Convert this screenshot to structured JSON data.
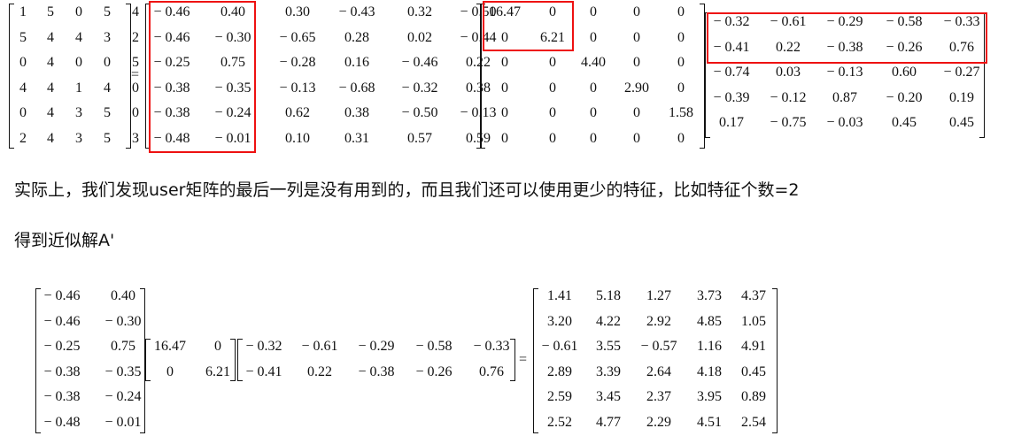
{
  "top_equation": {
    "A": [
      [
        "1",
        "5",
        "0",
        "5",
        "4"
      ],
      [
        "5",
        "4",
        "4",
        "3",
        "2"
      ],
      [
        "0",
        "4",
        "0",
        "0",
        "5"
      ],
      [
        "4",
        "4",
        "1",
        "4",
        "0"
      ],
      [
        "0",
        "4",
        "3",
        "5",
        "0"
      ],
      [
        "2",
        "4",
        "3",
        "5",
        "3"
      ]
    ],
    "eq1": "=",
    "U": [
      [
        "− 0.46",
        "0.40",
        "0.30",
        "− 0.43",
        "0.32",
        "− 0.50"
      ],
      [
        "− 0.46",
        "− 0.30",
        "− 0.65",
        "0.28",
        "0.02",
        "− 0.44"
      ],
      [
        "− 0.25",
        "0.75",
        "− 0.28",
        "0.16",
        "− 0.46",
        "0.22"
      ],
      [
        "− 0.38",
        "− 0.35",
        "− 0.13",
        "− 0.68",
        "− 0.32",
        "0.38"
      ],
      [
        "− 0.38",
        "− 0.24",
        "0.62",
        "0.38",
        "− 0.50",
        "− 0.13"
      ],
      [
        "− 0.48",
        "− 0.01",
        "0.10",
        "0.31",
        "0.57",
        "0.59"
      ]
    ],
    "S": [
      [
        "16.47",
        "0",
        "0",
        "0",
        "0"
      ],
      [
        "0",
        "6.21",
        "0",
        "0",
        "0"
      ],
      [
        "0",
        "0",
        "4.40",
        "0",
        "0"
      ],
      [
        "0",
        "0",
        "0",
        "2.90",
        "0"
      ],
      [
        "0",
        "0",
        "0",
        "0",
        "1.58"
      ],
      [
        "0",
        "0",
        "0",
        "0",
        "0"
      ]
    ],
    "Vt": [
      [
        "− 0.32",
        "− 0.61",
        "− 0.29",
        "− 0.58",
        "− 0.33"
      ],
      [
        "− 0.41",
        "0.22",
        "− 0.38",
        "− 0.26",
        "0.76"
      ],
      [
        "− 0.74",
        "0.03",
        "− 0.13",
        "0.60",
        "− 0.27"
      ],
      [
        "− 0.39",
        "− 0.12",
        "0.87",
        "− 0.20",
        "0.19"
      ],
      [
        "0.17",
        "− 0.75",
        "− 0.03",
        "0.45",
        "0.45"
      ]
    ]
  },
  "text": {
    "line1": "实际上，我们发现user矩阵的最后一列是没有用到的，而且我们还可以使用更少的特征，比如特征个数=2",
    "line2": "得到近似解A'"
  },
  "bottom_equation": {
    "U2": [
      [
        "− 0.46",
        "0.40"
      ],
      [
        "− 0.46",
        "− 0.30"
      ],
      [
        "− 0.25",
        "0.75"
      ],
      [
        "− 0.38",
        "− 0.35"
      ],
      [
        "− 0.38",
        "− 0.24"
      ],
      [
        "− 0.48",
        "− 0.01"
      ]
    ],
    "S2": [
      [
        "16.47",
        "0"
      ],
      [
        "0",
        "6.21"
      ]
    ],
    "Vt2": [
      [
        "− 0.32",
        "− 0.61",
        "− 0.29",
        "− 0.58",
        "− 0.33"
      ],
      [
        "− 0.41",
        "0.22",
        "− 0.38",
        "− 0.26",
        "0.76"
      ]
    ],
    "eq2": "=",
    "Aprime": [
      [
        "1.41",
        "5.18",
        "1.27",
        "3.73",
        "4.37"
      ],
      [
        "3.20",
        "4.22",
        "2.92",
        "4.85",
        "1.05"
      ],
      [
        "− 0.61",
        "3.55",
        "− 0.57",
        "1.16",
        "4.91"
      ],
      [
        "2.89",
        "3.39",
        "2.64",
        "4.18",
        "0.45"
      ],
      [
        "2.59",
        "3.45",
        "2.37",
        "3.95",
        "0.89"
      ],
      [
        "2.52",
        "4.77",
        "2.29",
        "4.51",
        "2.54"
      ]
    ]
  },
  "colors": {
    "highlight": "#e11111",
    "text": "#111111"
  }
}
